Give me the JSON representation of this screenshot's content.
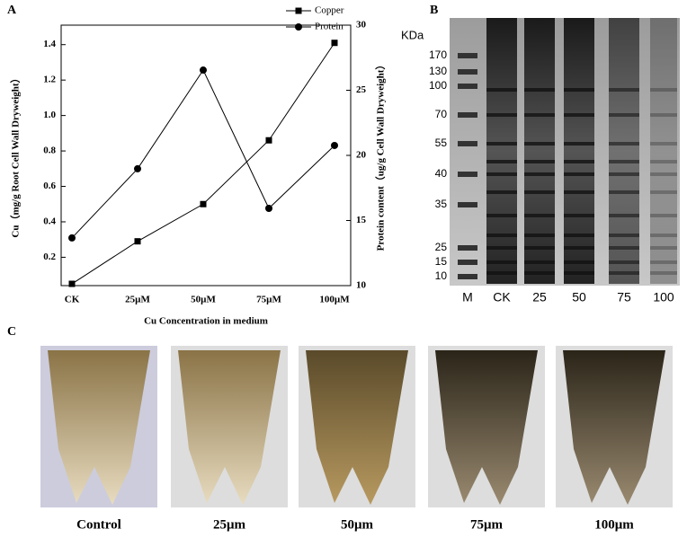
{
  "chart_data": {
    "type": "line",
    "panel": "A",
    "x_label": "Cu Concentration in medium",
    "y_label": "Cu（mg/g Root Cell Wall Dryweight）",
    "y2_label": "Protein content（ug/g Cell Wall Dryweight）",
    "categories": [
      "CK",
      "25µM",
      "50µM",
      "75µM",
      "100µM"
    ],
    "series": [
      {
        "name": "Copper",
        "color": "#000000",
        "marker": "square",
        "axis": "y",
        "values": [
          0.05,
          0.29,
          0.5,
          0.86,
          1.41
        ]
      },
      {
        "name": "Protein",
        "color": "#000000",
        "marker": "circle",
        "axis": "y2",
        "values": [
          13.66,
          18.97,
          26.55,
          15.93,
          20.76
        ]
      }
    ],
    "ylim": [
      0.04,
      1.51
    ],
    "yticks": [
      0.2,
      0.4,
      0.6,
      0.8,
      {
        "value": 1,
        "label": "1.0"
      },
      1.2,
      1.4
    ],
    "y2lim": [
      10,
      30
    ],
    "y2ticks": [
      10,
      15,
      20,
      25,
      30
    ],
    "legend": "top"
  },
  "gel": {
    "panel": "B",
    "unit": "KDa",
    "markers": [
      "170",
      "130",
      "100",
      "70",
      "55",
      "40",
      "35",
      "25",
      "15",
      "10"
    ],
    "lanes": [
      "M",
      "CK",
      "25",
      "50",
      "75",
      "100"
    ]
  },
  "photos": {
    "panel": "C",
    "captions": [
      "Control",
      "25μm",
      "50μm",
      "75μm",
      "100μm"
    ]
  }
}
